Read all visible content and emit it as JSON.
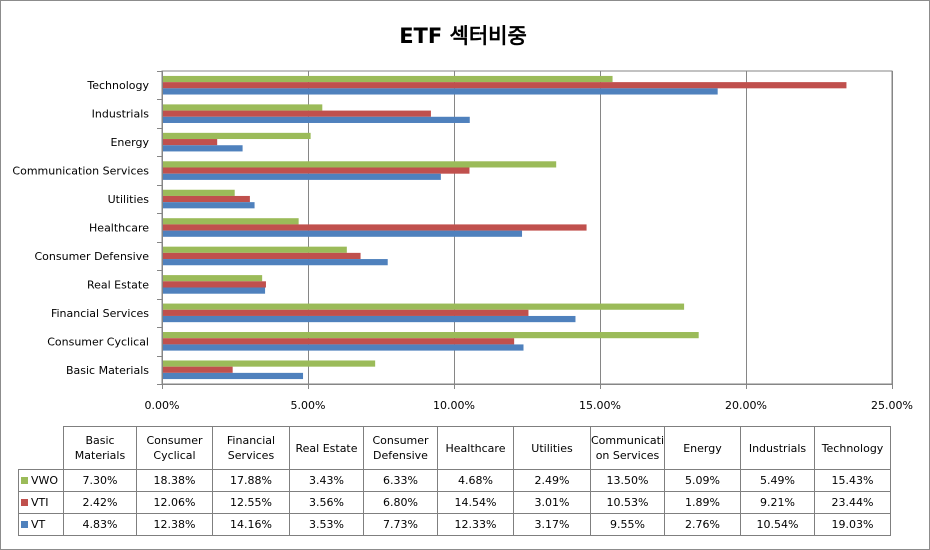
{
  "colors": {
    "VWO": "#9bbb59",
    "VTI": "#c0504d",
    "VT": "#4f81bd",
    "grid": "#868686",
    "axis": "#868686"
  },
  "chart_data": {
    "type": "bar",
    "orientation": "horizontal",
    "title": "ETF 섹터비중",
    "categories": [
      "Basic Materials",
      "Consumer Cyclical",
      "Financial Services",
      "Real Estate",
      "Consumer Defensive",
      "Healthcare",
      "Utilities",
      "Communication Services",
      "Energy",
      "Industrials",
      "Technology"
    ],
    "table_headers": [
      "Basic Materials",
      "Consumer Cyclical",
      "Financial Services",
      "Real Estate",
      "Consumer Defensive",
      "Healthcare",
      "Utilities",
      "Communicati on Services",
      "Energy",
      "Industrials",
      "Technology"
    ],
    "x_ticks": [
      "0.00%",
      "5.00%",
      "10.00%",
      "15.00%",
      "20.00%",
      "25.00%"
    ],
    "xlim": [
      0,
      25
    ],
    "grid": true,
    "legend": "data table",
    "series": [
      {
        "name": "VWO",
        "values": [
          7.3,
          18.38,
          17.88,
          3.43,
          6.33,
          4.68,
          2.49,
          13.5,
          5.09,
          5.49,
          15.43
        ],
        "labels": [
          "7.30%",
          "18.38%",
          "17.88%",
          "3.43%",
          "6.33%",
          "4.68%",
          "2.49%",
          "13.50%",
          "5.09%",
          "5.49%",
          "15.43%"
        ]
      },
      {
        "name": "VTI",
        "values": [
          2.42,
          12.06,
          12.55,
          3.56,
          6.8,
          14.54,
          3.01,
          10.53,
          1.89,
          9.21,
          23.44
        ],
        "labels": [
          "2.42%",
          "12.06%",
          "12.55%",
          "3.56%",
          "6.80%",
          "14.54%",
          "3.01%",
          "10.53%",
          "1.89%",
          "9.21%",
          "23.44%"
        ]
      },
      {
        "name": "VT",
        "values": [
          4.83,
          12.38,
          14.16,
          3.53,
          7.73,
          12.33,
          3.17,
          9.55,
          2.76,
          10.54,
          19.03
        ],
        "labels": [
          "4.83%",
          "12.38%",
          "14.16%",
          "3.53%",
          "7.73%",
          "12.33%",
          "3.17%",
          "9.55%",
          "2.76%",
          "10.54%",
          "19.03%"
        ]
      }
    ]
  }
}
